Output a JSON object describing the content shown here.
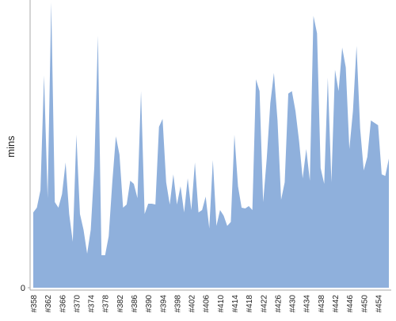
{
  "chart_data": {
    "type": "area",
    "ylabel": "mins",
    "color": "#8fb0dc",
    "categories": [
      "#358",
      null,
      null,
      null,
      "#362",
      null,
      null,
      null,
      "#366",
      null,
      null,
      null,
      "#370",
      null,
      null,
      null,
      "#374",
      null,
      null,
      null,
      "#378",
      null,
      null,
      null,
      "#382",
      null,
      null,
      null,
      "#386",
      null,
      null,
      null,
      "#390",
      null,
      null,
      null,
      "#394",
      null,
      null,
      null,
      "#398",
      null,
      null,
      null,
      "#402",
      null,
      null,
      null,
      "#406",
      null,
      null,
      null,
      "#410",
      null,
      null,
      null,
      "#414",
      null,
      null,
      null,
      "#418",
      null,
      null,
      null,
      "#422",
      null,
      null,
      null,
      "#426",
      null,
      null,
      null,
      "#430",
      null,
      null,
      null,
      "#434",
      null,
      null,
      null,
      "#438",
      null,
      null,
      null,
      "#442",
      null,
      null,
      null,
      "#446",
      null,
      null,
      null,
      "#450",
      null,
      null,
      null,
      "#454",
      null,
      null,
      null
    ],
    "values": [
      95,
      101,
      123,
      268,
      113,
      360,
      108,
      101,
      118,
      158,
      93,
      58,
      193,
      93,
      73,
      43,
      73,
      153,
      318,
      41,
      41,
      65,
      133,
      191,
      168,
      101,
      105,
      135,
      131,
      113,
      248,
      93,
      106,
      106,
      105,
      203,
      213,
      133,
      105,
      143,
      105,
      128,
      95,
      138,
      98,
      158,
      95,
      98,
      115,
      75,
      161,
      78,
      98,
      91,
      78,
      83,
      193,
      128,
      101,
      100,
      103,
      98,
      263,
      248,
      108,
      163,
      233,
      271,
      211,
      111,
      133,
      245,
      248,
      223,
      185,
      138,
      175,
      135,
      343,
      321,
      151,
      131,
      265,
      133,
      275,
      248,
      303,
      278,
      175,
      223,
      305,
      201,
      148,
      165,
      211,
      208,
      205,
      143,
      141,
      163
    ],
    "ylim": [
      0,
      360
    ],
    "yticks": [
      0
    ]
  }
}
